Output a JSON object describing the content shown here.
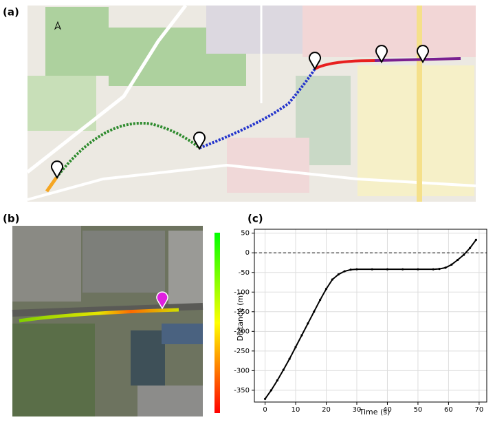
{
  "panel_labels": [
    "(a)",
    "(b)",
    "(c)"
  ],
  "chart_data": {
    "type": "line",
    "x": [
      0,
      2,
      4,
      6,
      8,
      10,
      12,
      14,
      16,
      18,
      20,
      22,
      24,
      26,
      28,
      30,
      35,
      40,
      45,
      50,
      55,
      57,
      59,
      61,
      63,
      65,
      67,
      69
    ],
    "series": [
      {
        "color": "#000000",
        "values": [
          -372,
          -350,
          -325,
          -298,
          -270,
          -240,
          -210,
          -180,
          -150,
          -120,
          -92,
          -68,
          -55,
          -47,
          -43,
          -42,
          -42,
          -42,
          -42,
          -42,
          -42,
          -41,
          -38,
          -30,
          -18,
          -5,
          12,
          33
        ]
      }
    ],
    "xlabel": "Time (s)",
    "ylabel": "Distance (m)",
    "xlim": [
      -3.5,
      72.5
    ],
    "ylim": [
      -380,
      60
    ],
    "xticks": [
      0,
      10,
      20,
      30,
      40,
      50,
      60,
      70
    ],
    "yticks": [
      -350,
      -300,
      -250,
      -200,
      -150,
      -100,
      -50,
      0,
      50
    ],
    "reference_line": 0,
    "grid": true
  }
}
